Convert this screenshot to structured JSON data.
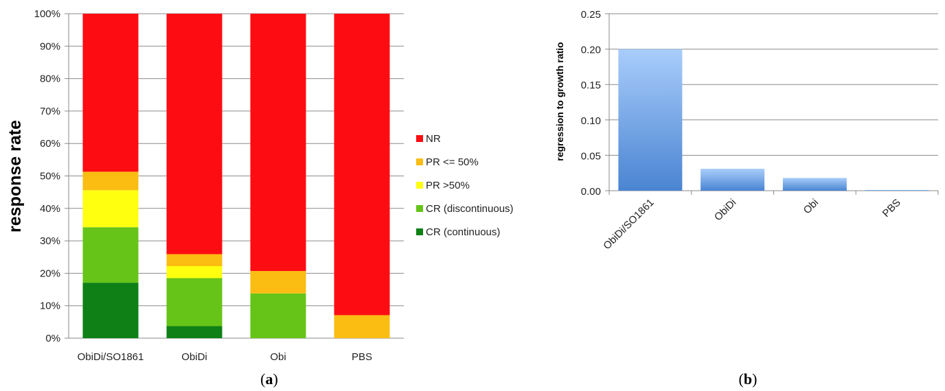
{
  "chart_data": [
    {
      "type": "bar",
      "stacked": true,
      "panel_label": {
        "open": "(",
        "letter": "a",
        "close": ")"
      },
      "title": "",
      "ylabel": "response rate",
      "xlabel": "",
      "ylim": [
        0,
        100
      ],
      "y_ticks": [
        "0%",
        "10%",
        "20%",
        "30%",
        "40%",
        "50%",
        "60%",
        "70%",
        "80%",
        "90%",
        "100%"
      ],
      "grid": true,
      "legend_position": "right",
      "categories": [
        "ObiDi/SO1861",
        "ObiDi",
        "Obi",
        "PBS"
      ],
      "series": [
        {
          "name": "CR (continuous)",
          "color": "#0e8016",
          "values": [
            17.1,
            3.7,
            0,
            0
          ]
        },
        {
          "name": "CR (discontinuous)",
          "color": "#66c418",
          "values": [
            17.1,
            14.8,
            13.8,
            0
          ]
        },
        {
          "name": "PR >50%",
          "color": "#ffff10",
          "values": [
            11.4,
            3.7,
            0,
            0
          ]
        },
        {
          "name": "PR <= 50%",
          "color": "#fbbd12",
          "values": [
            5.7,
            3.7,
            6.9,
            7.1
          ]
        },
        {
          "name": "NR",
          "color": "#fd0c12",
          "values": [
            48.7,
            74.1,
            79.3,
            92.9
          ]
        }
      ],
      "legend_order": [
        "NR",
        "PR <= 50%",
        "PR >50%",
        "CR (discontinuous)",
        "CR (continuous)"
      ]
    },
    {
      "type": "bar",
      "panel_label": {
        "open": "(",
        "letter": "b",
        "close": ")"
      },
      "title": "",
      "ylabel": "regression to growth ratio",
      "xlabel": "",
      "ylim": [
        0,
        0.25
      ],
      "y_ticks": [
        "0.00",
        "0.05",
        "0.10",
        "0.15",
        "0.20",
        "0.25"
      ],
      "grid": true,
      "categories": [
        "ObiDi/SO1861",
        "ObiDi",
        "Obi",
        "PBS"
      ],
      "values": [
        0.2,
        0.031,
        0.018,
        0.001
      ],
      "color_top": "#a9cdfb",
      "color_bottom": "#4a84d2"
    }
  ]
}
